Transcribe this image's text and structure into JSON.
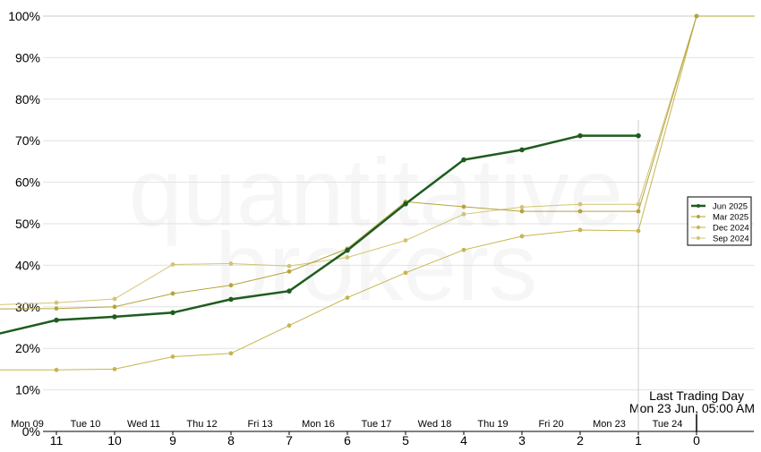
{
  "watermark": [
    "quantitative",
    "brokers"
  ],
  "chart_data": {
    "type": "line",
    "x": [
      12,
      11,
      10,
      9,
      8,
      7,
      6,
      5,
      4,
      3,
      2,
      1,
      0,
      -1
    ],
    "x_tick_labels": [
      "11",
      "10",
      "9",
      "8",
      "7",
      "6",
      "5",
      "4",
      "3",
      "2",
      "1",
      "0"
    ],
    "x_tick_values": [
      11,
      10,
      9,
      8,
      7,
      6,
      5,
      4,
      3,
      2,
      1,
      0
    ],
    "day_labels": [
      "Mon 09",
      "Tue 10",
      "Wed 11",
      "Thu 12",
      "Fri 13",
      "Mon 16",
      "Tue 17",
      "Wed 18",
      "Thu 19",
      "Fri 20",
      "Mon 23",
      "Tue 24"
    ],
    "y_tick_labels": [
      "0%",
      "10%",
      "20%",
      "30%",
      "40%",
      "50%",
      "60%",
      "70%",
      "80%",
      "90%",
      "100%"
    ],
    "ylim": [
      0,
      100
    ],
    "grid": true,
    "legend_position": "right",
    "annotation": {
      "line1": "Last Trading Day",
      "line2": "Mon 23 Jun, 05:00 AM",
      "x": 1
    },
    "series": [
      {
        "name": "Jun 2025",
        "color": "#1e5c1e",
        "emphasis": true,
        "values": [
          23.5,
          26.8,
          27.6,
          28.6,
          31.8,
          33.8,
          43.6,
          54.8,
          65.4,
          67.8,
          71.2,
          71.2,
          null,
          null
        ]
      },
      {
        "name": "Mar 2025",
        "color": "#b5a43a",
        "emphasis": false,
        "values": [
          29.5,
          29.6,
          30.0,
          33.2,
          35.2,
          38.5,
          44.0,
          55.3,
          54.1,
          53.0,
          53.0,
          53.0,
          100,
          100
        ]
      },
      {
        "name": "Dec 2024",
        "color": "#c6b54e",
        "emphasis": false,
        "values": [
          14.8,
          14.8,
          15.0,
          18.0,
          18.8,
          25.5,
          32.2,
          38.2,
          43.7,
          47.0,
          48.5,
          48.3,
          100,
          100
        ]
      },
      {
        "name": "Sep 2024",
        "color": "#d2c475",
        "emphasis": false,
        "values": [
          30.5,
          31.0,
          31.9,
          40.2,
          40.4,
          39.8,
          41.9,
          46.0,
          52.3,
          54.0,
          54.7,
          54.7,
          100,
          100
        ]
      }
    ]
  }
}
